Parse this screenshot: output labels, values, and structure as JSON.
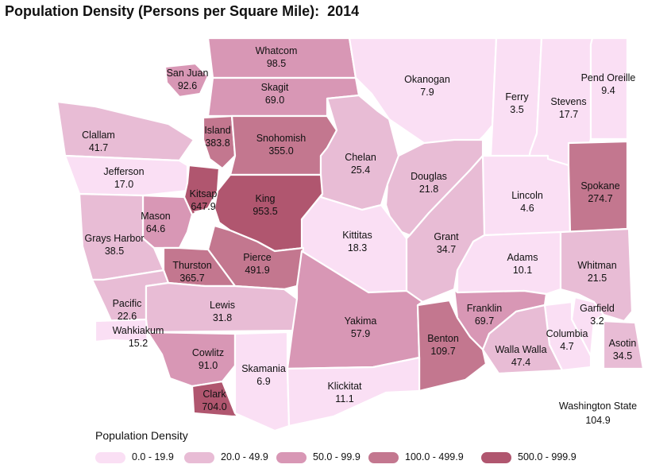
{
  "title": "Population Density (Persons per Square Mile):  2014",
  "state": {
    "name": "Washington State",
    "value": "104.9"
  },
  "legend": {
    "title": "Population Density",
    "classes": [
      {
        "label": "0.0 - 19.9",
        "color": "#fadff4"
      },
      {
        "label": "20.0 - 49.9",
        "color": "#e8bcd5"
      },
      {
        "label": "50.0 - 99.9",
        "color": "#d897b5"
      },
      {
        "label": "100.0 - 499.9",
        "color": "#c3778f"
      },
      {
        "label": "500.0 - 999.9",
        "color": "#b0566f"
      }
    ]
  },
  "counties": [
    {
      "name": "Whatcom",
      "value": "98.5",
      "class": 2
    },
    {
      "name": "San Juan",
      "value": "92.6",
      "class": 2
    },
    {
      "name": "Skagit",
      "value": "69.0",
      "class": 2
    },
    {
      "name": "Okanogan",
      "value": "7.9",
      "class": 0
    },
    {
      "name": "Ferry",
      "value": "3.5",
      "class": 0
    },
    {
      "name": "Stevens",
      "value": "17.7",
      "class": 0
    },
    {
      "name": "Pend Oreille",
      "value": "9.4",
      "class": 0
    },
    {
      "name": "Clallam",
      "value": "41.7",
      "class": 1
    },
    {
      "name": "Island",
      "value": "383.8",
      "class": 3
    },
    {
      "name": "Snohomish",
      "value": "355.0",
      "class": 3
    },
    {
      "name": "Chelan",
      "value": "25.4",
      "class": 1
    },
    {
      "name": "Douglas",
      "value": "21.8",
      "class": 1
    },
    {
      "name": "Jefferson",
      "value": "17.0",
      "class": 0
    },
    {
      "name": "Kitsap",
      "value": "647.9",
      "class": 4
    },
    {
      "name": "King",
      "value": "953.5",
      "class": 4
    },
    {
      "name": "Mason",
      "value": "64.6",
      "class": 2
    },
    {
      "name": "Lincoln",
      "value": "4.6",
      "class": 0
    },
    {
      "name": "Spokane",
      "value": "274.7",
      "class": 3
    },
    {
      "name": "Grays Harbor",
      "value": "38.5",
      "class": 1
    },
    {
      "name": "Kittitas",
      "value": "18.3",
      "class": 0
    },
    {
      "name": "Grant",
      "value": "34.7",
      "class": 1
    },
    {
      "name": "Pierce",
      "value": "491.9",
      "class": 3
    },
    {
      "name": "Thurston",
      "value": "365.7",
      "class": 3
    },
    {
      "name": "Adams",
      "value": "10.1",
      "class": 0
    },
    {
      "name": "Whitman",
      "value": "21.5",
      "class": 1
    },
    {
      "name": "Pacific",
      "value": "22.6",
      "class": 1
    },
    {
      "name": "Lewis",
      "value": "31.8",
      "class": 1
    },
    {
      "name": "Yakima",
      "value": "57.9",
      "class": 2
    },
    {
      "name": "Franklin",
      "value": "69.7",
      "class": 2
    },
    {
      "name": "Garfield",
      "value": "3.2",
      "class": 0
    },
    {
      "name": "Wahkiakum",
      "value": "15.2",
      "class": 0
    },
    {
      "name": "Benton",
      "value": "109.7",
      "class": 3
    },
    {
      "name": "Columbia",
      "value": "4.7",
      "class": 0
    },
    {
      "name": "Asotin",
      "value": "34.5",
      "class": 1
    },
    {
      "name": "Cowlitz",
      "value": "91.0",
      "class": 2
    },
    {
      "name": "Walla Walla",
      "value": "47.4",
      "class": 1
    },
    {
      "name": "Skamania",
      "value": "6.9",
      "class": 0
    },
    {
      "name": "Clark",
      "value": "704.0",
      "class": 4
    },
    {
      "name": "Klickitat",
      "value": "11.1",
      "class": 0
    }
  ]
}
